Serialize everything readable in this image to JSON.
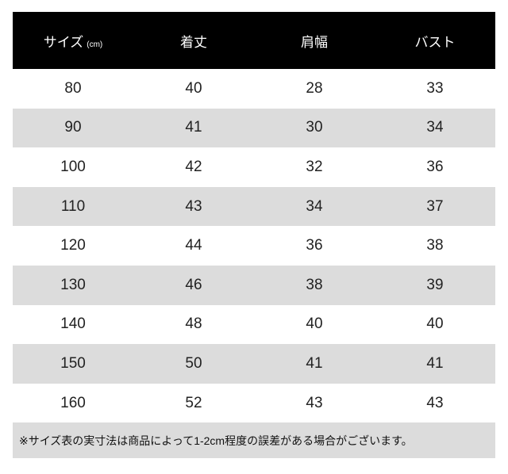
{
  "table": {
    "headers": [
      "サイズ",
      "着丈",
      "肩幅",
      "バスト"
    ],
    "size_unit": "(cm)",
    "rows": [
      [
        "80",
        "40",
        "28",
        "33"
      ],
      [
        "90",
        "41",
        "30",
        "34"
      ],
      [
        "100",
        "42",
        "32",
        "36"
      ],
      [
        "110",
        "43",
        "34",
        "37"
      ],
      [
        "120",
        "44",
        "36",
        "38"
      ],
      [
        "130",
        "46",
        "38",
        "39"
      ],
      [
        "140",
        "48",
        "40",
        "40"
      ],
      [
        "150",
        "50",
        "41",
        "41"
      ],
      [
        "160",
        "52",
        "43",
        "43"
      ]
    ]
  },
  "note": "※サイズ表の実寸法は商品によって1-2cm程度の誤差がある場合がございます。",
  "colors": {
    "header_bg": "#000000",
    "alt_row_bg": "#dcdcdc"
  }
}
